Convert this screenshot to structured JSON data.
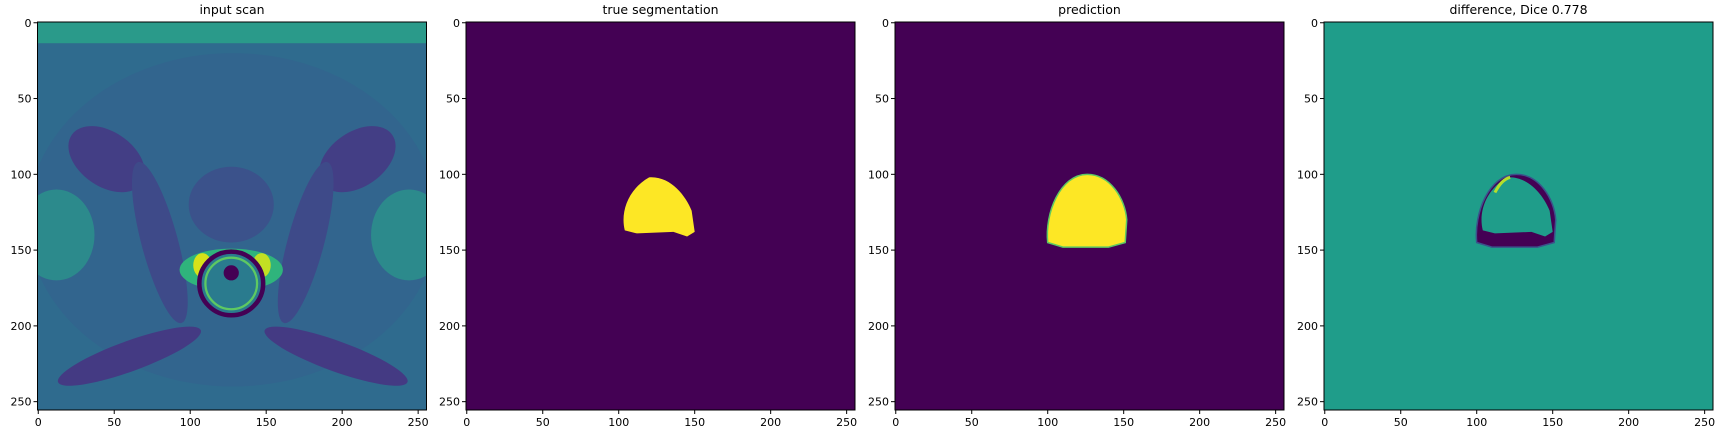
{
  "chart_data": [
    {
      "type": "image",
      "title": "input scan",
      "xlim": [
        -0.5,
        255.5
      ],
      "ylim": [
        255.5,
        -0.5
      ],
      "xticks": [
        0,
        50,
        100,
        150,
        200,
        250
      ],
      "yticks": [
        0,
        50,
        100,
        150,
        200,
        250
      ]
    },
    {
      "type": "image",
      "title": "true segmentation",
      "xlim": [
        -0.5,
        255.5
      ],
      "ylim": [
        255.5,
        -0.5
      ],
      "xticks": [
        0,
        50,
        100,
        150,
        200,
        250
      ],
      "yticks": [
        0,
        50,
        100,
        150,
        200,
        250
      ]
    },
    {
      "type": "image",
      "title": "prediction",
      "xlim": [
        -0.5,
        255.5
      ],
      "ylim": [
        255.5,
        -0.5
      ],
      "xticks": [
        0,
        50,
        100,
        150,
        200,
        250
      ],
      "yticks": [
        0,
        50,
        100,
        150,
        200,
        250
      ]
    },
    {
      "type": "image",
      "title": "difference, Dice 0.778",
      "xlim": [
        -0.5,
        255.5
      ],
      "ylim": [
        255.5,
        -0.5
      ],
      "xticks": [
        0,
        50,
        100,
        150,
        200,
        250
      ],
      "yticks": [
        0,
        50,
        100,
        150,
        200,
        250
      ]
    }
  ]
}
